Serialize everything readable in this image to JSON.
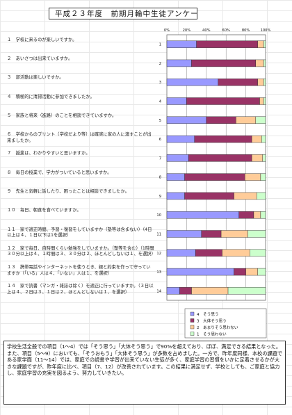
{
  "title": "平成２３年度　前期月輪中生徒アンケート",
  "questions": [
    "１　学校に来るのが楽しいですか。",
    "２　あいさつは出来ていますか。",
    "３　部活動は楽しいですか。",
    "４　積極的に清掃活動に参加できましたか。",
    "５　家族と将来（進路）のことを相談できていますか。",
    "６　学校からのプリント（学校だより等）は確実に家の人に渡すことが出来ましたか。",
    "７　授業は、わかりやすいと思いますか。",
    "８　毎日の授業で、学力がついていると思いますか。",
    "９　先生と気軽に話したり、困ったことは相談できましたか。",
    "１０　毎日、朝食を食べていますか。",
    "１１　家で適正時間、予習・復習をしていますか（塾等は含まない）（4日以上は４、１日以下は1を選択）",
    "１２　家で毎日、自時間くらい勉強をしていますか。（塾等を含む）（1時間３０分以上は４、１時間は３、３０分は２、ほとんどしないは１、を選択）",
    "１３　携帯電話やインターネットを使うとき、親と約束を作って守っていますか（「いる」人は４、「いない」人は１、を選択）",
    "１４　家で読書（マンガ・雑誌は除く）を適正に行っていますか。（３日以上は４、２日は３、１日は２、ほとんどしないは１、を選択）"
  ],
  "summary": "学校生活全般での項目（1～4）では「そう思う」「大体そう思う」で90%を超えており、ほぼ、満足できる結果となった。また、項目（5～9）においても、「そうおもう」「大体そう思う」が多数を占めました。一方で、昨年度同様、本校の課題である家学面（11～14）では、家庭での読書や学習が出来ていない生徒が多く、家庭学習の習慣をいかに定着させるかが大きな課題ですが、昨年度に比べ、項目（7、12）が改善されています。この結果に満足せず、学校としても、ご家庭と協力し、家庭学習の充実を図るよう、努力していきたい。",
  "chart_data": {
    "type": "bar",
    "orientation": "horizontal",
    "stacked": true,
    "categories": [
      "1",
      "2",
      "3",
      "4",
      "5",
      "6",
      "7",
      "8",
      "9",
      "10",
      "11",
      "12",
      "13",
      "14"
    ],
    "x_ticks": [
      "0%",
      "20%",
      "40%",
      "60%",
      "80%",
      "100%"
    ],
    "xlim": [
      0,
      100
    ],
    "legend_position": "bottom-right",
    "series": [
      {
        "name": "4　そう思う",
        "color": "#9999ff",
        "values": [
          30,
          25,
          52,
          20,
          40,
          28,
          22,
          18,
          18,
          73,
          35,
          29,
          68,
          13
        ]
      },
      {
        "name": "3　大体そう思う",
        "color": "#993366",
        "values": [
          62,
          65,
          40,
          74,
          30,
          58,
          64,
          61,
          50,
          15,
          20,
          27,
          12,
          12
        ]
      },
      {
        "name": "2　あまりそう思わない",
        "color": "#ffcc99",
        "values": [
          6,
          8,
          6,
          4,
          20,
          10,
          11,
          16,
          23,
          7,
          27,
          28,
          12,
          37
        ]
      },
      {
        "name": "1　そう思わない",
        "color": "#ccffcc",
        "values": [
          2,
          2,
          2,
          2,
          10,
          4,
          3,
          5,
          9,
          5,
          18,
          16,
          8,
          38
        ]
      }
    ]
  }
}
